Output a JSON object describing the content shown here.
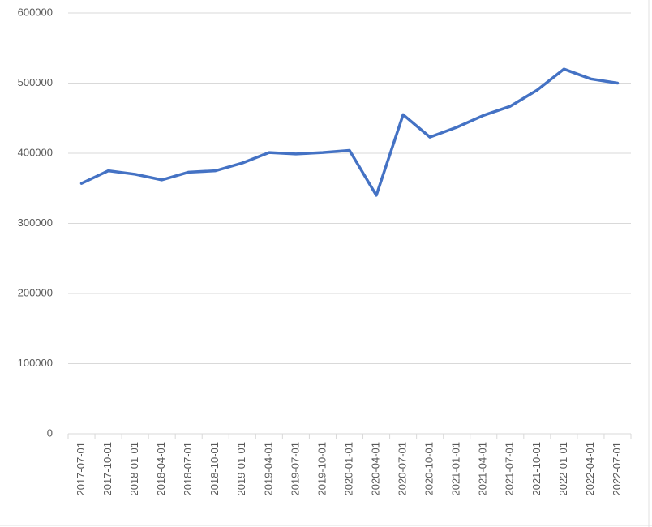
{
  "chart_data": {
    "type": "line",
    "categories": [
      "2017-07-01",
      "2017-10-01",
      "2018-01-01",
      "2018-04-01",
      "2018-07-01",
      "2018-10-01",
      "2019-01-01",
      "2019-04-01",
      "2019-07-01",
      "2019-10-01",
      "2020-01-01",
      "2020-04-01",
      "2020-07-01",
      "2020-10-01",
      "2021-01-01",
      "2021-04-01",
      "2021-07-01",
      "2021-10-01",
      "2022-01-01",
      "2022-04-01",
      "2022-07-01"
    ],
    "values": [
      357000,
      375000,
      370000,
      362000,
      373000,
      375000,
      386000,
      401000,
      399000,
      401000,
      404000,
      340000,
      455000,
      423000,
      437000,
      454000,
      467000,
      490000,
      520000,
      506000,
      500000
    ],
    "color": "#4472c4",
    "ylim": [
      0,
      600000
    ],
    "yticks": [
      0,
      100000,
      200000,
      300000,
      400000,
      500000,
      600000
    ],
    "grid": true
  }
}
